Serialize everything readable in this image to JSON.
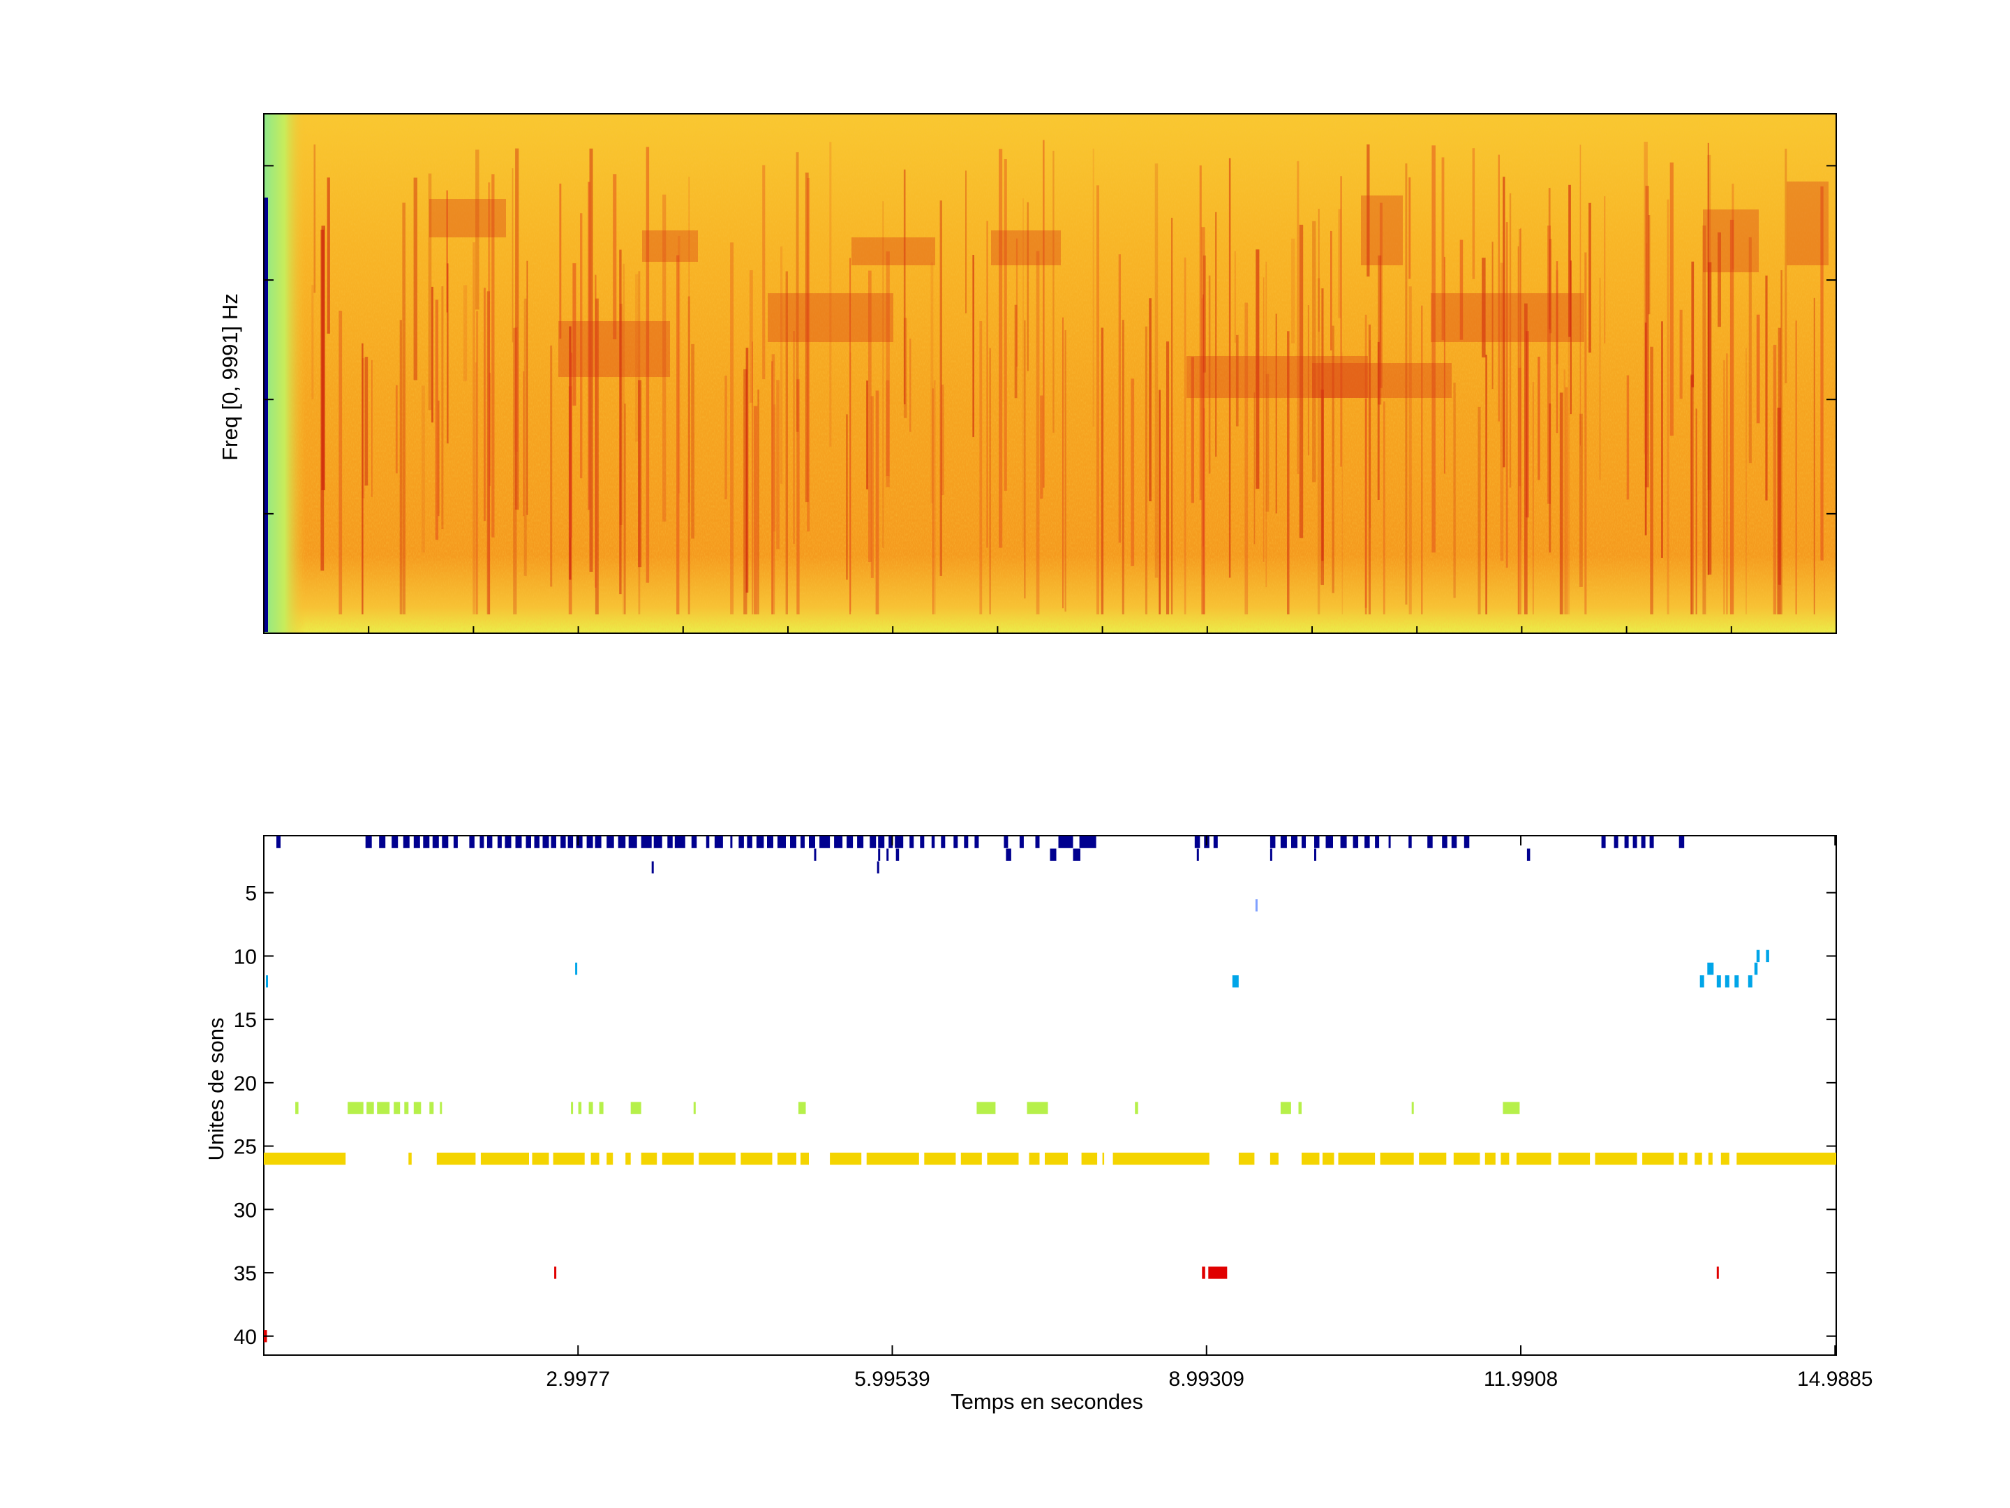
{
  "spectrogram": {
    "ylabel": "Freq [0, 9991] Hz"
  },
  "chart_data": [
    {
      "type": "heatmap",
      "title": "",
      "xlabel": "",
      "ylabel": "Freq [0, 9991] Hz",
      "ylim": [
        0,
        9991
      ],
      "colormap": "jet",
      "grid": false
    },
    {
      "type": "scatter",
      "title": "",
      "xlabel": "Temps en secondes",
      "ylabel": "Unites de sons",
      "xlim": [
        0,
        15
      ],
      "ylim": [
        41.5,
        0.5
      ],
      "y_reversed": true,
      "x_ticks": [
        "2.9977",
        "5.99539",
        "8.99309",
        "11.9908",
        "14.9885"
      ],
      "y_ticks": [
        5,
        10,
        15,
        20,
        25,
        30,
        35,
        40
      ],
      "grid": false,
      "series": [
        {
          "unit": 1,
          "color": "#00008f",
          "segments": [
            [
              0.12,
              0.16
            ],
            [
              0.97,
              1.03
            ],
            [
              1.1,
              1.16
            ],
            [
              1.22,
              1.28
            ],
            [
              1.33,
              1.39
            ],
            [
              1.43,
              1.49
            ],
            [
              1.52,
              1.58
            ],
            [
              1.61,
              1.67
            ],
            [
              1.7,
              1.76
            ],
            [
              1.81,
              1.85
            ],
            [
              1.96,
              2.01
            ],
            [
              2.06,
              2.1
            ],
            [
              2.13,
              2.18
            ],
            [
              2.23,
              2.27
            ],
            [
              2.3,
              2.36
            ],
            [
              2.4,
              2.46
            ],
            [
              2.5,
              2.55
            ],
            [
              2.58,
              2.63
            ],
            [
              2.66,
              2.72
            ],
            [
              2.74,
              2.79
            ],
            [
              2.83,
              2.88
            ],
            [
              2.9,
              2.95
            ],
            [
              2.98,
              3.04
            ],
            [
              3.08,
              3.14
            ],
            [
              3.16,
              3.22
            ],
            [
              3.27,
              3.34
            ],
            [
              3.38,
              3.45
            ],
            [
              3.48,
              3.56
            ],
            [
              3.6,
              3.7
            ],
            [
              3.72,
              3.8
            ],
            [
              3.85,
              3.9
            ],
            [
              3.92,
              4.02
            ],
            [
              4.08,
              4.13
            ],
            [
              4.22,
              4.25
            ],
            [
              4.3,
              4.38
            ],
            [
              4.45,
              4.47
            ],
            [
              4.53,
              4.58
            ],
            [
              4.61,
              4.66
            ],
            [
              4.7,
              4.77
            ],
            [
              4.8,
              4.86
            ],
            [
              4.9,
              4.98
            ],
            [
              5.02,
              5.08
            ],
            [
              5.12,
              5.16
            ],
            [
              5.2,
              5.26
            ],
            [
              5.3,
              5.4
            ],
            [
              5.44,
              5.52
            ],
            [
              5.56,
              5.62
            ],
            [
              5.66,
              5.72
            ],
            [
              5.78,
              5.84
            ],
            [
              5.86,
              5.92
            ],
            [
              5.96,
              6.0
            ],
            [
              6.02,
              6.1
            ],
            [
              6.16,
              6.2
            ],
            [
              6.26,
              6.3
            ],
            [
              6.37,
              6.4
            ],
            [
              6.46,
              6.5
            ],
            [
              6.58,
              6.62
            ],
            [
              6.68,
              6.72
            ],
            [
              6.78,
              6.82
            ],
            [
              7.06,
              7.1
            ],
            [
              7.21,
              7.25
            ],
            [
              7.36,
              7.4
            ],
            [
              7.58,
              7.72
            ],
            [
              7.78,
              7.94
            ],
            [
              8.88,
              8.93
            ],
            [
              8.97,
              9.02
            ],
            [
              9.06,
              9.1
            ],
            [
              9.6,
              9.65
            ],
            [
              9.7,
              9.76
            ],
            [
              9.8,
              9.86
            ],
            [
              9.9,
              9.94
            ],
            [
              10.02,
              10.07
            ],
            [
              10.13,
              10.2
            ],
            [
              10.27,
              10.33
            ],
            [
              10.39,
              10.44
            ],
            [
              10.5,
              10.55
            ],
            [
              10.6,
              10.64
            ],
            [
              10.73,
              10.75
            ],
            [
              10.92,
              10.95
            ],
            [
              11.1,
              11.15
            ],
            [
              11.24,
              11.29
            ],
            [
              11.33,
              11.38
            ],
            [
              11.45,
              11.5
            ],
            [
              12.76,
              12.8
            ],
            [
              12.88,
              12.92
            ],
            [
              12.98,
              13.02
            ],
            [
              13.06,
              13.1
            ],
            [
              13.14,
              13.18
            ],
            [
              13.22,
              13.26
            ],
            [
              13.5,
              13.55
            ]
          ]
        },
        {
          "unit": 2,
          "color": "#00008f",
          "segments": [
            [
              5.25,
              5.27
            ],
            [
              5.86,
              5.88
            ],
            [
              5.94,
              5.96
            ],
            [
              6.03,
              6.06
            ],
            [
              7.08,
              7.13
            ],
            [
              7.5,
              7.56
            ],
            [
              7.72,
              7.79
            ],
            [
              8.9,
              8.92
            ],
            [
              9.6,
              9.62
            ],
            [
              10.02,
              10.04
            ],
            [
              12.05,
              12.08
            ]
          ]
        },
        {
          "unit": 3,
          "color": "#00008f",
          "segments": [
            [
              3.7,
              3.72
            ],
            [
              5.85,
              5.87
            ]
          ]
        },
        {
          "unit": 6,
          "color": "#7fa0ff",
          "segments": [
            [
              9.46,
              9.48
            ]
          ]
        },
        {
          "unit": 10,
          "color": "#00a5e8",
          "segments": [
            [
              14.24,
              14.27
            ],
            [
              14.33,
              14.36
            ]
          ]
        },
        {
          "unit": 11,
          "color": "#00a5e8",
          "segments": [
            [
              2.97,
              2.99
            ],
            [
              13.77,
              13.83
            ],
            [
              14.22,
              14.25
            ]
          ]
        },
        {
          "unit": 12,
          "color": "#00a5e8",
          "segments": [
            [
              0.02,
              0.04
            ],
            [
              9.24,
              9.3
            ],
            [
              13.7,
              13.74
            ],
            [
              13.86,
              13.9
            ],
            [
              13.94,
              13.98
            ],
            [
              14.03,
              14.07
            ],
            [
              14.16,
              14.2
            ]
          ]
        },
        {
          "unit": 22,
          "color": "#b6f04a",
          "segments": [
            [
              0.3,
              0.33
            ],
            [
              0.8,
              0.95
            ],
            [
              0.98,
              1.05
            ],
            [
              1.08,
              1.2
            ],
            [
              1.24,
              1.3
            ],
            [
              1.34,
              1.38
            ],
            [
              1.43,
              1.5
            ],
            [
              1.58,
              1.62
            ],
            [
              1.68,
              1.7
            ],
            [
              2.93,
              2.95
            ],
            [
              3.0,
              3.03
            ],
            [
              3.1,
              3.14
            ],
            [
              3.2,
              3.24
            ],
            [
              3.5,
              3.6
            ],
            [
              4.1,
              4.12
            ],
            [
              5.1,
              5.17
            ],
            [
              6.8,
              6.98
            ],
            [
              7.28,
              7.48
            ],
            [
              8.31,
              8.34
            ],
            [
              9.7,
              9.8
            ],
            [
              9.87,
              9.9
            ],
            [
              10.95,
              10.97
            ],
            [
              11.82,
              11.98
            ]
          ]
        },
        {
          "unit": 26,
          "color": "#f4d400",
          "segments": [
            [
              0.0,
              0.78
            ],
            [
              1.38,
              1.41
            ],
            [
              1.65,
              2.02
            ],
            [
              2.07,
              2.53
            ],
            [
              2.56,
              2.72
            ],
            [
              2.76,
              3.06
            ],
            [
              3.12,
              3.2
            ],
            [
              3.27,
              3.33
            ],
            [
              3.45,
              3.5
            ],
            [
              3.6,
              3.75
            ],
            [
              3.8,
              4.1
            ],
            [
              4.15,
              4.5
            ],
            [
              4.55,
              4.85
            ],
            [
              4.9,
              5.08
            ],
            [
              5.12,
              5.2
            ],
            [
              5.4,
              5.7
            ],
            [
              5.75,
              6.25
            ],
            [
              6.3,
              6.6
            ],
            [
              6.65,
              6.85
            ],
            [
              6.9,
              7.2
            ],
            [
              7.3,
              7.4
            ],
            [
              7.45,
              7.67
            ],
            [
              7.8,
              7.95
            ],
            [
              8.0,
              8.0
            ],
            [
              8.1,
              9.02
            ],
            [
              9.3,
              9.45
            ],
            [
              9.6,
              9.68
            ],
            [
              9.9,
              10.07
            ],
            [
              10.1,
              10.21
            ],
            [
              10.25,
              10.6
            ],
            [
              10.65,
              10.97
            ],
            [
              11.02,
              11.28
            ],
            [
              11.35,
              11.6
            ],
            [
              11.65,
              11.75
            ],
            [
              11.8,
              11.88
            ],
            [
              11.95,
              12.28
            ],
            [
              12.35,
              12.65
            ],
            [
              12.7,
              13.1
            ],
            [
              13.15,
              13.45
            ],
            [
              13.5,
              13.58
            ],
            [
              13.65,
              13.72
            ],
            [
              13.78,
              13.82
            ],
            [
              13.9,
              13.98
            ],
            [
              14.05,
              15.0
            ]
          ]
        },
        {
          "unit": 35,
          "color": "#e00000",
          "segments": [
            [
              2.77,
              2.79
            ],
            [
              8.95,
              8.98
            ],
            [
              9.01,
              9.19
            ],
            [
              13.86,
              13.88
            ]
          ]
        },
        {
          "unit": 40,
          "color": "#e00000",
          "segments": [
            [
              0.0,
              0.03
            ]
          ]
        }
      ]
    }
  ],
  "colors": {
    "dark_blue": "#00008f",
    "light_blue": "#00a5e8",
    "pale_blue": "#7fa0ff",
    "lime": "#b6f04a",
    "gold": "#f4d400",
    "red": "#e00000"
  }
}
